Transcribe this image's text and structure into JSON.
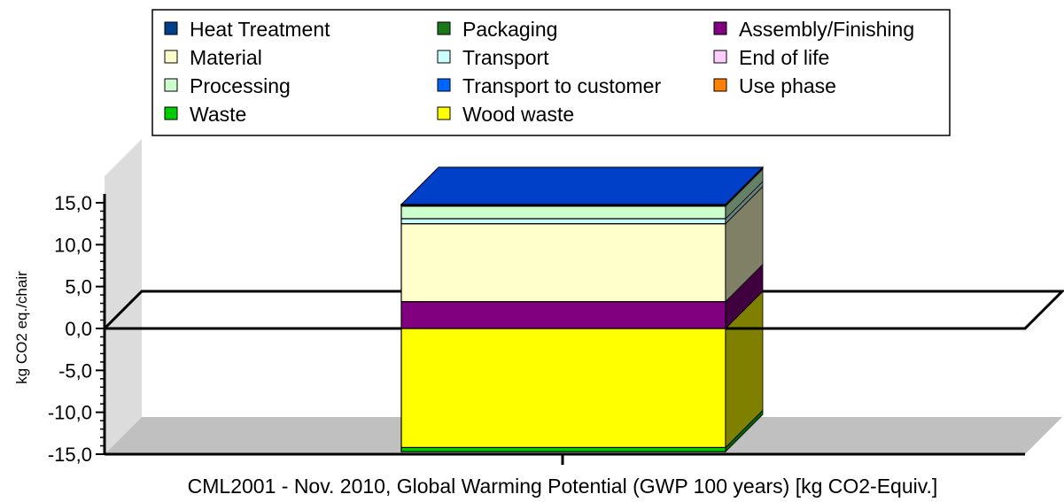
{
  "chart_data": {
    "type": "bar",
    "stacked": true,
    "three_d": true,
    "categories": [
      "CML2001 - Nov. 2010, Global Warming Potential (GWP 100 years) [kg CO2-Equiv.]"
    ],
    "xlabel": "CML2001 - Nov. 2010, Global Warming Potential (GWP 100 years) [kg CO2-Equiv.]",
    "ylabel": "kg CO2 eq./chair",
    "ylim": [
      -15,
      15
    ],
    "yticks": [
      15,
      10,
      5,
      0,
      -5,
      -10,
      -15
    ],
    "ytick_labels": [
      "15,0",
      "10,0",
      "5,0",
      "0,0",
      "-5,0",
      "-10,0",
      "-15,0"
    ],
    "legend_position": "top-center",
    "legend": [
      {
        "name": "Heat Treatment",
        "color": "#003f8a"
      },
      {
        "name": "Packaging",
        "color": "#1a7a1a"
      },
      {
        "name": "Assembly/Finishing",
        "color": "#800080"
      },
      {
        "name": "Material",
        "color": "#ffffcc"
      },
      {
        "name": "Transport",
        "color": "#ccffff"
      },
      {
        "name": "End of life",
        "color": "#ffccff"
      },
      {
        "name": "Processing",
        "color": "#ccffcc"
      },
      {
        "name": "Transport to customer",
        "color": "#0066ff"
      },
      {
        "name": "Use phase",
        "color": "#ff8000"
      },
      {
        "name": "Waste",
        "color": "#00cc00"
      },
      {
        "name": "Wood waste",
        "color": "#ffff00"
      }
    ],
    "series": [
      {
        "name": "Wood waste",
        "values": [
          -14.2
        ],
        "color": "#ffff00"
      },
      {
        "name": "Waste",
        "values": [
          -0.5
        ],
        "color": "#00cc00"
      },
      {
        "name": "Assembly/Finishing",
        "values": [
          3.2
        ],
        "color": "#800080"
      },
      {
        "name": "Material",
        "values": [
          9.3
        ],
        "color": "#ffffcc"
      },
      {
        "name": "Transport",
        "values": [
          0.6
        ],
        "color": "#ccffff"
      },
      {
        "name": "Processing",
        "values": [
          1.5
        ],
        "color": "#ccffcc"
      },
      {
        "name": "Packaging",
        "values": [
          0.1
        ],
        "color": "#1a7a1a"
      },
      {
        "name": "Transport to customer",
        "values": [
          0.05
        ],
        "color": "#0066ff"
      },
      {
        "name": "Heat Treatment",
        "values": [
          0.05
        ],
        "color": "#003f8a"
      }
    ]
  }
}
